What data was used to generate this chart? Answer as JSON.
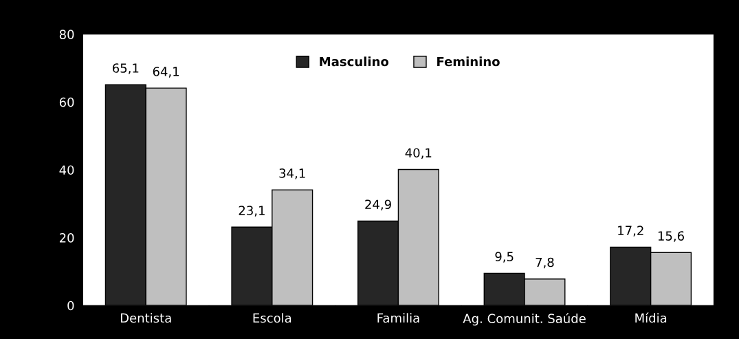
{
  "chart_data": {
    "type": "bar",
    "categories": [
      "Dentista",
      "Escola",
      "Familia",
      "Ag. Comunit. Saúde",
      "Mídia"
    ],
    "series": [
      {
        "name": "Masculino",
        "color": "#262626",
        "values": [
          65.1,
          23.1,
          24.9,
          9.5,
          17.2
        ],
        "value_labels": [
          "65,1",
          "23,1",
          "24,9",
          "9,5",
          "17,2"
        ]
      },
      {
        "name": "Feminino",
        "color": "#bfbfbf",
        "values": [
          64.1,
          34.1,
          40.1,
          7.8,
          15.6
        ],
        "value_labels": [
          "64,1",
          "34,1",
          "40,1",
          "7,8",
          "15,6"
        ]
      }
    ],
    "ylim": [
      0,
      80
    ],
    "yticks": [
      0,
      20,
      40,
      60,
      80
    ],
    "grid": false,
    "legend": "top"
  }
}
